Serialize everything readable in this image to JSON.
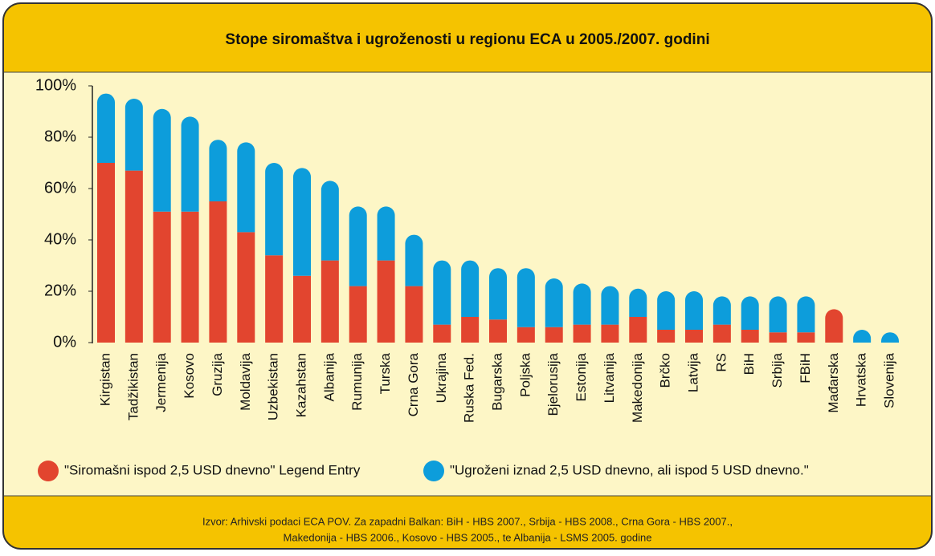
{
  "chart_data": {
    "type": "stacked_bar",
    "title": "Stope siromaštva i ugroženosti u regionu ECA u 2005./2007. godini",
    "categories": [
      "Kirgistan",
      "Tadžikistan",
      "Jermenija",
      "Kosovo",
      "Gruzija",
      "Moldavija",
      "Uzbekistan",
      "Kazahstan",
      "Albanija",
      "Rumunija",
      "Turska",
      "Crna Gora",
      "Ukrajina",
      "Ruska Fed.",
      "Bugarska",
      "Poljska",
      "Bjelorusija",
      "Estonija",
      "Litvanija",
      "Makedonija",
      "Brčko",
      "Latvija",
      "RS",
      "BiH",
      "Srbija",
      "FBiH",
      "Mađarska",
      "Hrvatska",
      "Slovenija"
    ],
    "series": [
      {
        "name": "\"Siromašni ispod 2,5 USD dnevno\" Legend Entry",
        "color": "#e2452f",
        "values": [
          70,
          67,
          51,
          51,
          55,
          43,
          34,
          26,
          32,
          22,
          32,
          22,
          7,
          10,
          9,
          6,
          6,
          7,
          7,
          10,
          5,
          5,
          7,
          5,
          4,
          4,
          13,
          0,
          0
        ]
      },
      {
        "name": "\"Ugroženi iznad 2,5 USD dnevno, ali ispod 5 USD dnevno.\"",
        "color": "#0d9ddb",
        "values": [
          27,
          28,
          40,
          37,
          24,
          35,
          36,
          42,
          31,
          31,
          21,
          20,
          25,
          22,
          20,
          23,
          19,
          16,
          15,
          11,
          15,
          15,
          11,
          13,
          14,
          14,
          0,
          5,
          4
        ]
      }
    ],
    "ylim": [
      0,
      100
    ],
    "yticks": [
      {
        "value": 0,
        "label": "0%"
      },
      {
        "value": 20,
        "label": "20%"
      },
      {
        "value": 40,
        "label": "40%"
      },
      {
        "value": 60,
        "label": "60%"
      },
      {
        "value": 80,
        "label": "80%"
      },
      {
        "value": 100,
        "label": "100%"
      }
    ],
    "source": [
      "Izvor: Arhivski podaci ECA POV.  Za zapadni Balkan:  BiH - HBS 2007., Srbija - HBS 2008., Crna Gora  - HBS 2007.,",
      "Makedonija - HBS 2006., Kosovo - HBS 2005., te Albanija - LSMS 2005. godine"
    ]
  }
}
